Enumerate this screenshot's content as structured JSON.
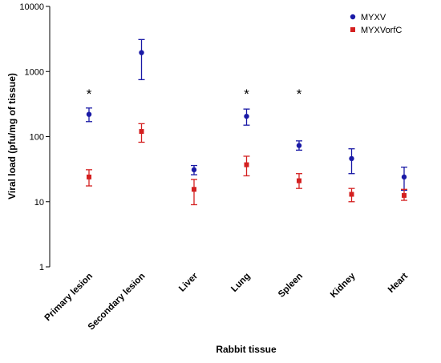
{
  "chart_data": {
    "type": "scatter",
    "title": "",
    "xlabel": "Rabbit tissue",
    "ylabel": "Viral  load (pfu/mg of tissue)",
    "yscale": "log",
    "ylim": [
      1,
      10000
    ],
    "y_ticks": [
      {
        "value": 1,
        "label": "1"
      },
      {
        "value": 10,
        "label": "10"
      },
      {
        "value": 100,
        "label": "100"
      },
      {
        "value": 1000,
        "label": "1000"
      },
      {
        "value": 10000,
        "label": "10000"
      }
    ],
    "categories": [
      "Primary lesion",
      "Secondary lesion",
      "Liver",
      "Lung",
      "Spleen",
      "Kidney",
      "Heart"
    ],
    "legend_position": "top-right",
    "series": [
      {
        "name": "MYXV",
        "color": "#1a1aa6",
        "marker": "circle",
        "values": [
          220,
          1950,
          31,
          205,
          73,
          46,
          24
        ],
        "err_low": [
          170,
          750,
          26,
          150,
          62,
          27,
          15
        ],
        "err_high": [
          275,
          3100,
          36,
          265,
          86,
          65,
          34
        ]
      },
      {
        "name": "MYXVorfC",
        "color": "#d42020",
        "marker": "square",
        "values": [
          24,
          120,
          15.5,
          37,
          21,
          13,
          12.5
        ],
        "err_low": [
          17.5,
          82,
          9,
          25,
          16,
          10,
          10.5
        ],
        "err_high": [
          31,
          158,
          22,
          50,
          27,
          16,
          15.5
        ]
      }
    ],
    "annotations": [
      {
        "category": "Primary lesion",
        "text": "*",
        "y": 480
      },
      {
        "category": "Lung",
        "text": "*",
        "y": 480
      },
      {
        "category": "Spleen",
        "text": "*",
        "y": 480
      }
    ]
  }
}
